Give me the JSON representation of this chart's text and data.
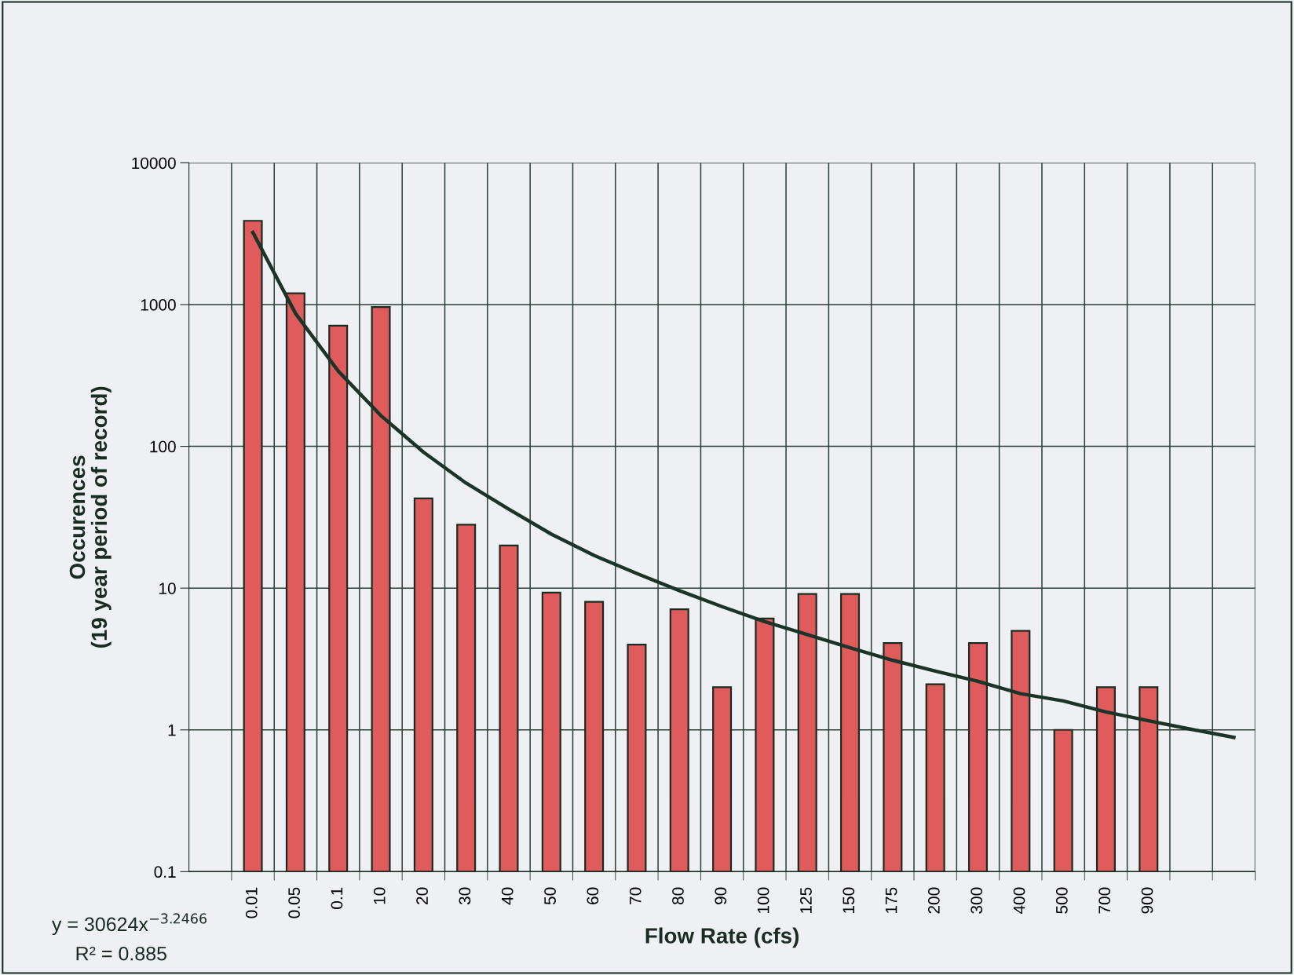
{
  "chart_data": {
    "type": "bar",
    "xlabel": "Flow Rate (cfs)",
    "ylabel": "Occurences\n(19 year period of record)",
    "categories": [
      "0.01",
      "0.05",
      "0.1",
      "10",
      "20",
      "30",
      "40",
      "50",
      "60",
      "70",
      "80",
      "90",
      "100",
      "125",
      "150",
      "175",
      "200",
      "300",
      "400",
      "500",
      "700",
      "900",
      null,
      null
    ],
    "series": [
      {
        "color": "#e05c5c",
        "values": [
          3900,
          1200,
          710,
          960,
          43,
          28,
          20,
          9.3,
          8,
          4,
          7.1,
          2,
          6.1,
          9.1,
          9.1,
          4.1,
          2.1,
          4.1,
          5,
          1,
          2,
          2,
          null,
          null
        ]
      },
      {
        "type": "line",
        "color": "#1c3328",
        "values": [
          3227,
          865,
          340,
          165,
          91,
          55,
          36,
          24,
          17,
          12.7,
          9.6,
          7.4,
          5.8,
          4.7,
          3.8,
          3.1,
          2.6,
          2.2,
          1.8,
          1.6,
          1.34,
          1.16,
          1.01,
          0.885
        ]
      }
    ],
    "log": true,
    "ylim": [
      0.1,
      10000
    ],
    "yticks": [
      0.1,
      1,
      10,
      100,
      1000,
      10000
    ],
    "grid": true,
    "marker": "none",
    "line_style": "solid",
    "annotations": [
      "y = 30624x$^{−3.2466}$",
      "R² = 0.885"
    ]
  }
}
